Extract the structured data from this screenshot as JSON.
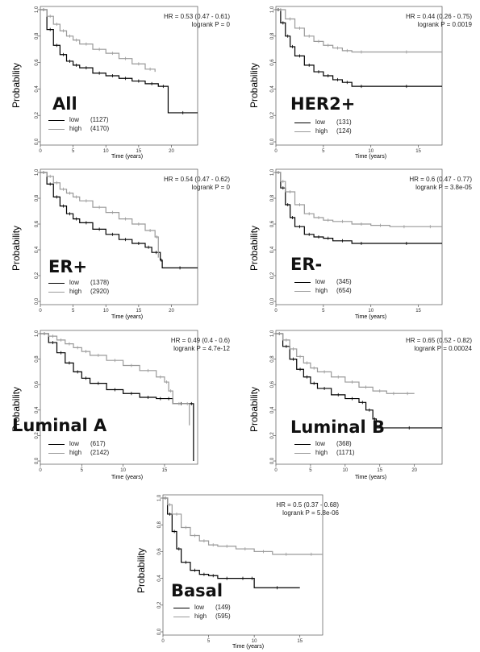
{
  "panels": [
    {
      "title": "All",
      "hr": "HR = 0.53 (0.47 - 0.61)",
      "p": "logrank P = 0",
      "ylabel": "Probability",
      "xlabel": "Time (years)",
      "legend": [
        {
          "name": "low",
          "n": "(1127)"
        },
        {
          "name": "high",
          "n": "(4170)"
        }
      ]
    },
    {
      "title": "HER2+",
      "hr": "HR = 0.44 (0.26 - 0.75)",
      "p": "logrank P = 0.0019",
      "ylabel": "Probability",
      "xlabel": "Time (years)",
      "legend": [
        {
          "name": "low",
          "n": "(131)"
        },
        {
          "name": "high",
          "n": "(124)"
        }
      ]
    },
    {
      "title": "ER+",
      "hr": "HR = 0.54 (0.47 - 0.62)",
      "p": "logrank P = 0",
      "ylabel": "Probability",
      "xlabel": "Time (years)",
      "legend": [
        {
          "name": "low",
          "n": "(1378)"
        },
        {
          "name": "high",
          "n": "(2920)"
        }
      ]
    },
    {
      "title": "ER-",
      "hr": "HR = 0.6 (0.47 - 0.77)",
      "p": "logrank P = 3.8e-05",
      "ylabel": "Probability",
      "xlabel": "Time (years)",
      "legend": [
        {
          "name": "low",
          "n": "(345)"
        },
        {
          "name": "high",
          "n": "(654)"
        }
      ]
    },
    {
      "title": "Luminal A",
      "hr": "HR = 0.49 (0.4 - 0.6)",
      "p": "logrank P = 4.7e-12",
      "ylabel": "Probability",
      "xlabel": "Time (years)",
      "legend": [
        {
          "name": "low",
          "n": "(617)"
        },
        {
          "name": "high",
          "n": "(2142)"
        }
      ]
    },
    {
      "title": "Luminal B",
      "hr": "HR = 0.65 (0.52 - 0.82)",
      "p": "logrank P = 0.00024",
      "ylabel": "Probability",
      "xlabel": "Time (years)",
      "legend": [
        {
          "name": "low",
          "n": "(368)"
        },
        {
          "name": "high",
          "n": "(1171)"
        }
      ]
    },
    {
      "title": "Basal",
      "hr": "HR = 0.5 (0.37 - 0.68)",
      "p": "logrank P = 5.8e-06",
      "ylabel": "Probability",
      "xlabel": "Time (years)",
      "legend": [
        {
          "name": "low",
          "n": "(149)"
        },
        {
          "name": "high",
          "n": "(595)"
        }
      ]
    }
  ],
  "colors": {
    "low": "#000000",
    "high": "#9a9a9a",
    "axis": "#555555"
  },
  "chart_data": [
    {
      "type": "line",
      "title": "All",
      "xlabel": "Time (years)",
      "ylabel": "Probability",
      "xlim": [
        0,
        24
      ],
      "ylim": [
        0,
        1
      ],
      "xticks": [
        0,
        5,
        10,
        15,
        20
      ],
      "yticks": [
        0.0,
        0.2,
        0.4,
        0.6,
        0.8,
        1.0
      ],
      "series": [
        {
          "name": "low",
          "x": [
            0,
            1,
            2,
            3,
            4,
            5,
            6,
            8,
            10,
            12,
            14,
            16,
            18,
            19.5,
            24
          ],
          "y": [
            1.0,
            0.85,
            0.73,
            0.66,
            0.61,
            0.58,
            0.56,
            0.52,
            0.5,
            0.48,
            0.46,
            0.44,
            0.42,
            0.22,
            0.22
          ]
        },
        {
          "name": "high",
          "x": [
            0,
            1,
            2,
            3,
            4,
            5,
            6,
            8,
            10,
            12,
            14,
            16,
            17.5
          ],
          "y": [
            1.0,
            0.95,
            0.89,
            0.84,
            0.8,
            0.77,
            0.74,
            0.7,
            0.67,
            0.63,
            0.59,
            0.55,
            0.53
          ]
        }
      ]
    },
    {
      "type": "line",
      "title": "HER2+",
      "xlabel": "Time (years)",
      "ylabel": "Probability",
      "xlim": [
        0,
        17.5
      ],
      "ylim": [
        0,
        1
      ],
      "xticks": [
        0,
        5,
        10,
        15
      ],
      "yticks": [
        0.0,
        0.2,
        0.4,
        0.6,
        0.8,
        1.0
      ],
      "series": [
        {
          "name": "low",
          "x": [
            0,
            0.5,
            1,
            1.5,
            2,
            3,
            4,
            5,
            6,
            7,
            8,
            10,
            17.5
          ],
          "y": [
            1.0,
            0.9,
            0.8,
            0.72,
            0.65,
            0.58,
            0.53,
            0.5,
            0.47,
            0.45,
            0.42,
            0.42,
            0.42
          ]
        },
        {
          "name": "high",
          "x": [
            0,
            1,
            2,
            3,
            4,
            5,
            6,
            7,
            8,
            10,
            17.5
          ],
          "y": [
            1.0,
            0.93,
            0.86,
            0.8,
            0.76,
            0.73,
            0.71,
            0.69,
            0.68,
            0.68,
            0.68
          ]
        }
      ]
    },
    {
      "type": "line",
      "title": "ER+",
      "xlabel": "Time (years)",
      "ylabel": "Probability",
      "xlim": [
        0,
        24
      ],
      "ylim": [
        0,
        1
      ],
      "xticks": [
        0,
        5,
        10,
        15,
        20
      ],
      "yticks": [
        0.0,
        0.2,
        0.4,
        0.6,
        0.8,
        1.0
      ],
      "series": [
        {
          "name": "low",
          "x": [
            0,
            1,
            2,
            3,
            4,
            5,
            6,
            8,
            10,
            12,
            14,
            16,
            17,
            18.3,
            18.6,
            24
          ],
          "y": [
            1.0,
            0.91,
            0.81,
            0.74,
            0.68,
            0.64,
            0.61,
            0.56,
            0.52,
            0.48,
            0.45,
            0.42,
            0.38,
            0.32,
            0.26,
            0.26
          ]
        },
        {
          "name": "high",
          "x": [
            0,
            1,
            2,
            3,
            4,
            5,
            6,
            8,
            10,
            12,
            14,
            16,
            17.5,
            18
          ],
          "y": [
            1.0,
            0.97,
            0.92,
            0.87,
            0.84,
            0.81,
            0.78,
            0.73,
            0.69,
            0.64,
            0.6,
            0.55,
            0.5,
            0.34
          ]
        }
      ]
    },
    {
      "type": "line",
      "title": "ER-",
      "xlabel": "Time (years)",
      "ylabel": "Probability",
      "xlim": [
        0,
        17.5
      ],
      "ylim": [
        0,
        1
      ],
      "xticks": [
        0,
        5,
        10,
        15
      ],
      "yticks": [
        0.0,
        0.2,
        0.4,
        0.6,
        0.8,
        1.0
      ],
      "series": [
        {
          "name": "low",
          "x": [
            0,
            0.5,
            1,
            1.5,
            2,
            3,
            4,
            5,
            6,
            8,
            10,
            17.5
          ],
          "y": [
            1.0,
            0.88,
            0.75,
            0.65,
            0.58,
            0.52,
            0.5,
            0.49,
            0.47,
            0.45,
            0.45,
            0.45
          ]
        },
        {
          "name": "high",
          "x": [
            0,
            0.5,
            1,
            2,
            3,
            4,
            5,
            6,
            8,
            10,
            12,
            15,
            17.5
          ],
          "y": [
            1.0,
            0.93,
            0.85,
            0.75,
            0.68,
            0.65,
            0.63,
            0.62,
            0.6,
            0.59,
            0.58,
            0.58,
            0.58
          ]
        }
      ]
    },
    {
      "type": "line",
      "title": "Luminal A",
      "xlabel": "Time (years)",
      "ylabel": "Probability",
      "xlim": [
        0,
        19
      ],
      "ylim": [
        0,
        1
      ],
      "xticks": [
        0,
        5,
        10,
        15
      ],
      "yticks": [
        0.0,
        0.2,
        0.4,
        0.6,
        0.8,
        1.0
      ],
      "series": [
        {
          "name": "low",
          "x": [
            0,
            1,
            2,
            3,
            4,
            5,
            6,
            8,
            10,
            12,
            14,
            15,
            16,
            18,
            18.5
          ],
          "y": [
            1.0,
            0.93,
            0.85,
            0.77,
            0.7,
            0.65,
            0.61,
            0.56,
            0.53,
            0.5,
            0.49,
            0.49,
            0.45,
            0.45,
            0.0
          ]
        },
        {
          "name": "high",
          "x": [
            0,
            1,
            2,
            3,
            4,
            5,
            6,
            8,
            10,
            12,
            14,
            15,
            15.5,
            16,
            17.5,
            18
          ],
          "y": [
            1.0,
            0.98,
            0.95,
            0.92,
            0.89,
            0.86,
            0.83,
            0.79,
            0.75,
            0.71,
            0.66,
            0.62,
            0.55,
            0.45,
            0.45,
            0.28
          ]
        }
      ]
    },
    {
      "type": "line",
      "title": "Luminal B",
      "xlabel": "Time (years)",
      "ylabel": "Probability",
      "xlim": [
        0,
        24
      ],
      "ylim": [
        0,
        1
      ],
      "xticks": [
        0,
        5,
        10,
        15,
        20
      ],
      "yticks": [
        0.0,
        0.2,
        0.4,
        0.6,
        0.8,
        1.0
      ],
      "series": [
        {
          "name": "low",
          "x": [
            0,
            1,
            2,
            3,
            4,
            5,
            6,
            8,
            10,
            12,
            13,
            14,
            14.5,
            24
          ],
          "y": [
            1.0,
            0.9,
            0.8,
            0.72,
            0.66,
            0.61,
            0.57,
            0.52,
            0.49,
            0.46,
            0.4,
            0.33,
            0.26,
            0.26
          ]
        },
        {
          "name": "high",
          "x": [
            0,
            1,
            2,
            3,
            4,
            5,
            6,
            8,
            10,
            12,
            14,
            16,
            18,
            20
          ],
          "y": [
            1.0,
            0.95,
            0.88,
            0.82,
            0.77,
            0.73,
            0.7,
            0.66,
            0.62,
            0.58,
            0.55,
            0.53,
            0.53,
            0.53
          ]
        }
      ]
    },
    {
      "type": "line",
      "title": "Basal",
      "xlabel": "Time (years)",
      "ylabel": "Probability",
      "xlim": [
        0,
        17.5
      ],
      "ylim": [
        0,
        1
      ],
      "xticks": [
        0,
        5,
        10,
        15
      ],
      "yticks": [
        0.0,
        0.2,
        0.4,
        0.6,
        0.8,
        1.0
      ],
      "series": [
        {
          "name": "low",
          "x": [
            0,
            0.5,
            1,
            1.5,
            2,
            3,
            4,
            5,
            6,
            8,
            9.5,
            10,
            15
          ],
          "y": [
            1.0,
            0.88,
            0.75,
            0.62,
            0.52,
            0.46,
            0.43,
            0.42,
            0.4,
            0.4,
            0.4,
            0.33,
            0.33
          ]
        },
        {
          "name": "high",
          "x": [
            0,
            0.5,
            1,
            2,
            3,
            4,
            5,
            6,
            8,
            10,
            12,
            15,
            17.5
          ],
          "y": [
            1.0,
            0.95,
            0.88,
            0.78,
            0.72,
            0.68,
            0.65,
            0.64,
            0.62,
            0.6,
            0.58,
            0.58,
            0.58
          ]
        }
      ]
    }
  ]
}
